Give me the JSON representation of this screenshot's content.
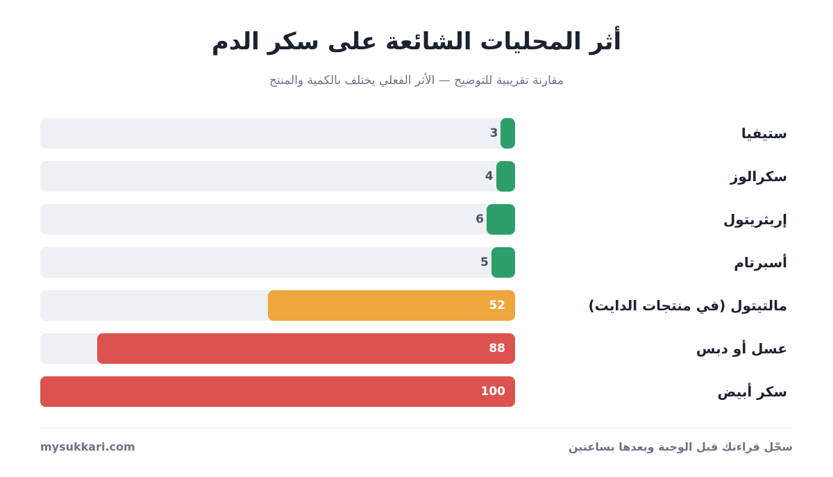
{
  "title": "أثر المحليات الشائعة على سكر الدم",
  "subtitle": "مقارنة تقريبية للتوضيح — الأثر الفعلي يختلف بالكمية والمنتج",
  "chart_data": {
    "type": "bar",
    "orientation": "horizontal",
    "categories": [
      "ستيفيا",
      "سكرالوز",
      "إريثريتول",
      "أسبرتام",
      "مالتيتول (في منتجات الدايت)",
      "عسل أو دبس",
      "سكر أبيض"
    ],
    "values": [
      3,
      4,
      6,
      5,
      52,
      88,
      100
    ],
    "colors": [
      "#2e9e6a",
      "#2e9e6a",
      "#2e9e6a",
      "#2e9e6a",
      "#efa63c",
      "#dc524f",
      "#dc524f"
    ],
    "xlim": [
      0,
      100
    ],
    "grid": false,
    "track_color": "#eef0f4"
  },
  "footer": {
    "site": "mysukkari.com",
    "note": "سجّل قراءتك قبل الوجبة وبعدها بساعتين"
  }
}
